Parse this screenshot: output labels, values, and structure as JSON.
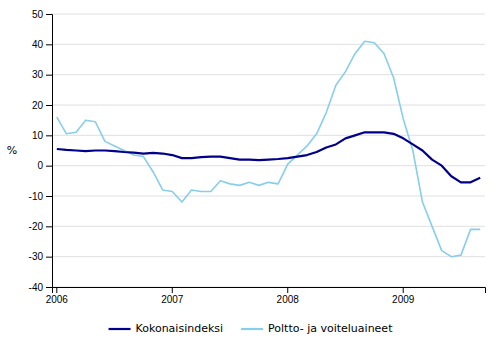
{
  "chart_data": {
    "type": "line",
    "ylabel": "%",
    "categories": [
      "2006",
      null,
      null,
      null,
      null,
      null,
      null,
      null,
      null,
      null,
      null,
      null,
      "2007",
      null,
      null,
      null,
      null,
      null,
      null,
      null,
      null,
      null,
      null,
      null,
      "2008",
      null,
      null,
      null,
      null,
      null,
      null,
      null,
      null,
      null,
      null,
      null,
      "2009",
      null,
      null,
      null,
      null,
      null,
      null,
      null,
      null
    ],
    "series": [
      {
        "name": "Poltto- ja voiteluaineet",
        "color": "#87CEEB",
        "values": [
          16.0,
          10.5,
          11.0,
          15.0,
          14.5,
          8.0,
          6.5,
          5.0,
          3.5,
          3.0,
          -2.0,
          -8.0,
          -8.5,
          -12.0,
          -8.0,
          -8.5,
          -8.5,
          -5.0,
          -6.0,
          -6.5,
          -5.5,
          -6.5,
          -5.5,
          -6.0,
          0.5,
          3.5,
          6.5,
          10.5,
          17.5,
          26.5,
          31.0,
          37.0,
          41.0,
          40.5,
          37.0,
          29.0,
          15.5,
          5.0,
          -12.0,
          -20.0,
          -28.0,
          -30.0,
          -29.5,
          -21.0,
          -21.0
        ]
      },
      {
        "name": "Kokonaisindeksi",
        "color": "#00008B",
        "values": [
          5.5,
          5.2,
          5.0,
          4.8,
          5.0,
          5.0,
          4.8,
          4.5,
          4.3,
          4.0,
          4.2,
          4.0,
          3.5,
          2.5,
          2.5,
          2.8,
          3.0,
          3.0,
          2.5,
          2.0,
          2.0,
          1.8,
          2.0,
          2.2,
          2.5,
          3.0,
          3.5,
          4.5,
          6.0,
          7.0,
          9.0,
          10.0,
          11.0,
          11.0,
          11.0,
          10.5,
          9.0,
          7.0,
          5.0,
          2.0,
          0.0,
          -3.5,
          -5.5,
          -5.5,
          -4.0
        ]
      }
    ],
    "ylim": [
      -40,
      50
    ],
    "yticks": [
      -40,
      -30,
      -20,
      -10,
      0,
      10,
      20,
      30,
      40,
      50
    ],
    "grid": true,
    "legend": "bottom"
  }
}
